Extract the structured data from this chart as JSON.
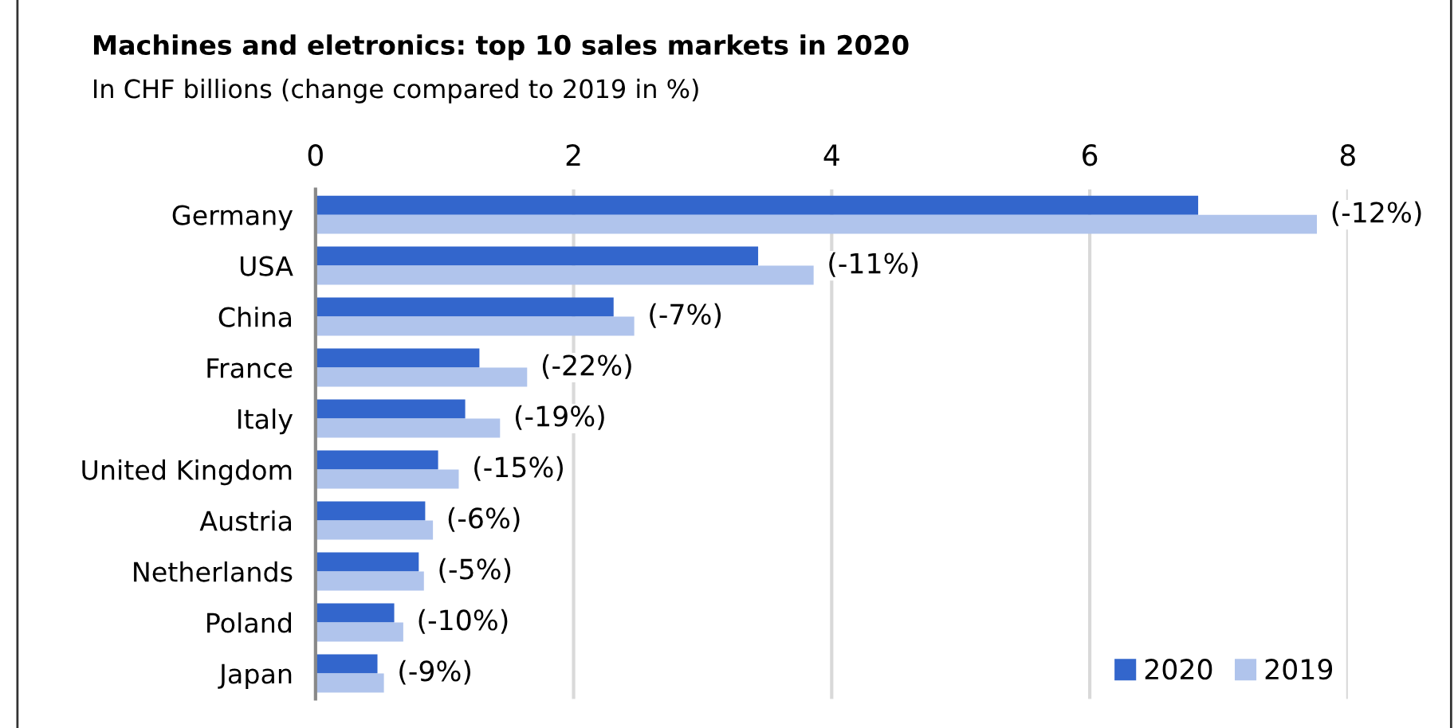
{
  "chart_data": {
    "type": "bar",
    "orientation": "horizontal",
    "title": "Machines and eletronics: top 10 sales markets in 2020",
    "subtitle": "In CHF billions (change compared to 2019 in %)",
    "categories": [
      "Germany",
      "USA",
      "China",
      "France",
      "Italy",
      "United Kingdom",
      "Austria",
      "Netherlands",
      "Poland",
      "Japan"
    ],
    "series": [
      {
        "name": "2020",
        "color": "#3366cc",
        "values": [
          6.84,
          3.43,
          2.31,
          1.27,
          1.16,
          0.95,
          0.85,
          0.8,
          0.61,
          0.48
        ]
      },
      {
        "name": "2019",
        "color": "#b0c4ec",
        "values": [
          7.76,
          3.86,
          2.47,
          1.64,
          1.43,
          1.11,
          0.91,
          0.84,
          0.68,
          0.53
        ]
      }
    ],
    "xlim": [
      0,
      8
    ],
    "xticks": [
      0,
      2,
      4,
      6,
      8
    ],
    "grid": "x",
    "legend": "bottom right",
    "annotations": [
      {
        "text": "(-12%)",
        "x": 7.76,
        "y": "Germany"
      },
      {
        "text": "(-11%)",
        "x": 3.86,
        "y": "USA"
      },
      {
        "text": "(-7%)",
        "x": 2.47,
        "y": "China"
      },
      {
        "text": "(-22%)",
        "x": 1.64,
        "y": "France"
      },
      {
        "text": "(-19%)",
        "x": 1.43,
        "y": "Italy"
      },
      {
        "text": "(-15%)",
        "x": 1.11,
        "y": "United Kingdom"
      },
      {
        "text": "(-6%)",
        "x": 0.91,
        "y": "Austria"
      },
      {
        "text": "(-5%)",
        "x": 0.84,
        "y": "Netherlands"
      },
      {
        "text": "(-10%)",
        "x": 0.68,
        "y": "Poland"
      },
      {
        "text": "(-9%)",
        "x": 0.53,
        "y": "Japan"
      }
    ]
  }
}
